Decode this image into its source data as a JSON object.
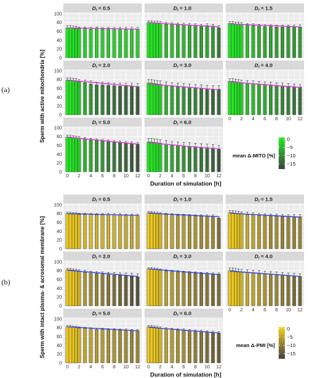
{
  "chart_data": [
    {
      "type": "bar",
      "panel_label": "(a)",
      "ylabel": "Sperm with active mitochondria [%]",
      "xlabel": "Duration of simulation [h]",
      "x": [
        0,
        0.5,
        1,
        1.5,
        2,
        3,
        4,
        5,
        6,
        7,
        8,
        9,
        10,
        11,
        12
      ],
      "x_ticks": [
        "0",
        "2",
        "4",
        "6",
        "8",
        "10",
        "12"
      ],
      "y_ticks": [
        "0",
        "20",
        "40",
        "60",
        "80",
        "100"
      ],
      "ylim": [
        0,
        100
      ],
      "facet_prefix": "D",
      "facet_sub": "i",
      "fit_color": "#d63bd8",
      "legend": {
        "title": "mean Δ-MITO [%]",
        "ticks": [
          "0",
          "−5",
          "−10",
          "−15"
        ],
        "low_color": "#404040",
        "high_color": "#22ee22",
        "range": [
          -18,
          1
        ]
      },
      "facets": [
        {
          "label": "= 0.5",
          "values": [
            68,
            68,
            67,
            66,
            66,
            66,
            65,
            66,
            65,
            65,
            65,
            65,
            65,
            65,
            65
          ],
          "errors": [
            5,
            5,
            5,
            5,
            4,
            4,
            4,
            4,
            4,
            4,
            4,
            4,
            4,
            4,
            4
          ],
          "deltas": [
            0,
            -0.5,
            -1,
            -1.5,
            -2,
            -2,
            -2.5,
            -2,
            -2.5,
            -2.5,
            -2.5,
            -2.5,
            -2.5,
            -2.5,
            -2.5
          ],
          "fit": [
            68,
            65
          ]
        },
        {
          "label": "= 1.0",
          "values": [
            80,
            80,
            79,
            79,
            78,
            76,
            76,
            75,
            75,
            74,
            73,
            72,
            73,
            72,
            68
          ],
          "errors": [
            4,
            4,
            4,
            4,
            4,
            4,
            4,
            4,
            4,
            4,
            4,
            4,
            4,
            4,
            5
          ],
          "deltas": [
            0,
            0,
            -1,
            -1,
            -2,
            -4,
            -4,
            -5,
            -5,
            -6,
            -7,
            -8,
            -7,
            -8,
            -12
          ],
          "fit": [
            80,
            70
          ]
        },
        {
          "label": "= 1.5",
          "values": [
            78,
            78,
            77,
            77,
            76,
            74,
            73,
            72,
            71,
            71,
            70,
            70,
            70,
            70,
            70
          ],
          "errors": [
            4,
            4,
            4,
            4,
            4,
            4,
            4,
            4,
            4,
            4,
            4,
            4,
            4,
            4,
            5
          ],
          "deltas": [
            0,
            0,
            -1,
            -1,
            -2,
            -4,
            -5,
            -6,
            -7,
            -7,
            -8,
            -8,
            -8,
            -8,
            -8
          ],
          "fit": [
            77,
            70
          ]
        },
        {
          "label": "= 2.0",
          "values": [
            79,
            79,
            78,
            77,
            75,
            73,
            70,
            68,
            68,
            67,
            66,
            65,
            65,
            65,
            64
          ],
          "errors": [
            5,
            5,
            5,
            5,
            5,
            6,
            7,
            6,
            6,
            6,
            6,
            7,
            7,
            7,
            7
          ],
          "deltas": [
            0,
            0,
            -1,
            -2,
            -4,
            -6,
            -9,
            -11,
            -11,
            -12,
            -13,
            -14,
            -14,
            -14,
            -15
          ],
          "fit": [
            79,
            64
          ]
        },
        {
          "label": "= 3.0",
          "values": [
            72,
            72,
            71,
            70,
            69,
            67,
            65,
            64,
            63,
            62,
            61,
            60,
            59,
            58,
            58
          ],
          "errors": [
            8,
            8,
            8,
            8,
            8,
            8,
            8,
            8,
            8,
            8,
            8,
            8,
            8,
            8,
            8
          ],
          "deltas": [
            0,
            0,
            -1,
            -2,
            -3,
            -5,
            -7,
            -8,
            -9,
            -10,
            -11,
            -12,
            -13,
            -14,
            -14
          ],
          "fit": [
            70,
            57
          ]
        },
        {
          "label": "= 4.0",
          "values": [
            76,
            76,
            75,
            74,
            73,
            72,
            71,
            70,
            69,
            68,
            67,
            66,
            65,
            64,
            63
          ],
          "errors": [
            6,
            6,
            6,
            6,
            6,
            6,
            6,
            6,
            6,
            6,
            6,
            6,
            6,
            6,
            6
          ],
          "deltas": [
            0,
            0,
            -1,
            -2,
            -3,
            -4,
            -5,
            -6,
            -7,
            -8,
            -9,
            -10,
            -11,
            -12,
            -13
          ],
          "fit": [
            75,
            62
          ]
        },
        {
          "label": "= 5.0",
          "values": [
            79,
            79,
            78,
            77,
            76,
            74,
            72,
            71,
            70,
            68,
            67,
            66,
            65,
            64,
            63
          ],
          "errors": [
            4,
            4,
            4,
            4,
            4,
            4,
            4,
            4,
            4,
            4,
            4,
            4,
            4,
            4,
            4
          ],
          "deltas": [
            0,
            0,
            -1,
            -2,
            -3,
            -5,
            -7,
            -8,
            -9,
            -11,
            -12,
            -13,
            -14,
            -15,
            -16
          ],
          "fit": [
            79,
            63
          ]
        },
        {
          "label": "= 6.0",
          "values": [
            68,
            68,
            67,
            66,
            65,
            63,
            61,
            60,
            59,
            58,
            57,
            56,
            55,
            54,
            52
          ],
          "errors": [
            8,
            8,
            8,
            8,
            8,
            8,
            8,
            8,
            8,
            8,
            8,
            8,
            8,
            8,
            8
          ],
          "deltas": [
            0,
            0,
            -1,
            -2,
            -3,
            -5,
            -7,
            -8,
            -9,
            -10,
            -11,
            -12,
            -13,
            -14,
            -16
          ],
          "fit": [
            66,
            52
          ]
        }
      ]
    },
    {
      "type": "bar",
      "panel_label": "(b)",
      "ylabel": "Sperm with intact plasma- & acrosomal membrane [%]",
      "xlabel": "Duration of simulation [h]",
      "x": [
        0,
        0.5,
        1,
        1.5,
        2,
        3,
        4,
        5,
        6,
        7,
        8,
        9,
        10,
        11,
        12
      ],
      "x_ticks": [
        "0",
        "2",
        "4",
        "6",
        "8",
        "10",
        "12"
      ],
      "y_ticks": [
        "0",
        "20",
        "40",
        "60",
        "80",
        "100"
      ],
      "ylim": [
        0,
        100
      ],
      "facet_prefix": "D",
      "facet_sub": "i",
      "fit_color": "#3344dd",
      "legend": {
        "title": "mean Δ-PMI [%]",
        "ticks": [
          "0",
          "−5",
          "−10",
          "−15"
        ],
        "low_color": "#404040",
        "high_color": "#f5d020",
        "range": [
          -18,
          1
        ]
      },
      "facets": [
        {
          "label": "= 0.5",
          "values": [
            80,
            80,
            79,
            79,
            78,
            78,
            78,
            77,
            77,
            77,
            77,
            77,
            76,
            76,
            76
          ],
          "errors": [
            3,
            3,
            3,
            3,
            3,
            3,
            3,
            3,
            3,
            3,
            3,
            3,
            3,
            3,
            3
          ],
          "deltas": [
            0,
            0,
            -1,
            -1,
            -2,
            -2,
            -2,
            -3,
            -3,
            -3,
            -3,
            -3,
            -4,
            -4,
            -4
          ],
          "fit": [
            80,
            76
          ]
        },
        {
          "label": "= 1.0",
          "values": [
            82,
            82,
            81,
            80,
            79,
            78,
            77,
            76,
            76,
            75,
            75,
            74,
            74,
            74,
            70
          ],
          "errors": [
            3,
            3,
            3,
            3,
            3,
            3,
            3,
            3,
            3,
            3,
            3,
            3,
            3,
            3,
            3
          ],
          "deltas": [
            0,
            0,
            -1,
            -2,
            -3,
            -4,
            -5,
            -6,
            -6,
            -7,
            -7,
            -8,
            -8,
            -8,
            -12
          ],
          "fit": [
            81,
            73
          ]
        },
        {
          "label": "= 1.5",
          "values": [
            82,
            82,
            81,
            80,
            79,
            78,
            77,
            76,
            75,
            74,
            74,
            73,
            73,
            73,
            73
          ],
          "errors": [
            5,
            5,
            5,
            5,
            5,
            5,
            5,
            5,
            5,
            5,
            5,
            5,
            5,
            5,
            5
          ],
          "deltas": [
            0,
            0,
            -1,
            -2,
            -3,
            -4,
            -5,
            -6,
            -7,
            -8,
            -8,
            -9,
            -9,
            -9,
            -9
          ],
          "fit": [
            81,
            72
          ]
        },
        {
          "label": "= 2.0",
          "values": [
            82,
            82,
            81,
            80,
            78,
            76,
            74,
            73,
            72,
            71,
            70,
            69,
            68,
            67,
            66
          ],
          "errors": [
            3,
            3,
            3,
            3,
            4,
            5,
            5,
            5,
            5,
            5,
            6,
            6,
            7,
            7,
            7
          ],
          "deltas": [
            0,
            0,
            -1,
            -2,
            -4,
            -6,
            -8,
            -9,
            -10,
            -11,
            -12,
            -13,
            -14,
            -15,
            -16
          ],
          "fit": [
            81,
            67
          ]
        },
        {
          "label": "= 3.0",
          "values": [
            84,
            84,
            83,
            82,
            81,
            79,
            78,
            77,
            76,
            75,
            74,
            73,
            73,
            72,
            72
          ],
          "errors": [
            3,
            3,
            3,
            3,
            3,
            3,
            3,
            3,
            3,
            3,
            3,
            3,
            3,
            3,
            3
          ],
          "deltas": [
            0,
            0,
            -1,
            -2,
            -3,
            -5,
            -6,
            -7,
            -8,
            -9,
            -10,
            -11,
            -11,
            -12,
            -12
          ],
          "fit": [
            84,
            71
          ]
        },
        {
          "label": "= 4.0",
          "values": [
            80,
            80,
            79,
            78,
            77,
            76,
            75,
            74,
            73,
            72,
            71,
            70,
            69,
            68,
            67
          ],
          "errors": [
            6,
            6,
            6,
            6,
            6,
            6,
            6,
            6,
            6,
            6,
            6,
            6,
            6,
            6,
            6
          ],
          "deltas": [
            0,
            0,
            -1,
            -2,
            -3,
            -4,
            -5,
            -6,
            -7,
            -8,
            -9,
            -10,
            -11,
            -12,
            -13
          ],
          "fit": [
            79,
            67
          ]
        },
        {
          "label": "= 5.0",
          "values": [
            82,
            82,
            81,
            80,
            79,
            78,
            77,
            76,
            76,
            75,
            75,
            74,
            74,
            73,
            73
          ],
          "errors": [
            3,
            3,
            3,
            3,
            3,
            3,
            3,
            3,
            3,
            3,
            3,
            3,
            3,
            3,
            3
          ],
          "deltas": [
            0,
            0,
            -1,
            -2,
            -3,
            -4,
            -5,
            -6,
            -6,
            -7,
            -7,
            -8,
            -8,
            -9,
            -9
          ],
          "fit": [
            82,
            73
          ]
        },
        {
          "label": "= 6.0",
          "values": [
            82,
            82,
            81,
            80,
            79,
            77,
            76,
            75,
            74,
            73,
            72,
            71,
            70,
            69,
            68
          ],
          "errors": [
            3,
            3,
            3,
            3,
            3,
            3,
            3,
            3,
            3,
            3,
            3,
            3,
            3,
            3,
            3
          ],
          "deltas": [
            0,
            0,
            -1,
            -2,
            -3,
            -5,
            -6,
            -7,
            -8,
            -9,
            -10,
            -11,
            -12,
            -13,
            -14
          ],
          "fit": [
            81,
            68
          ]
        }
      ]
    }
  ]
}
